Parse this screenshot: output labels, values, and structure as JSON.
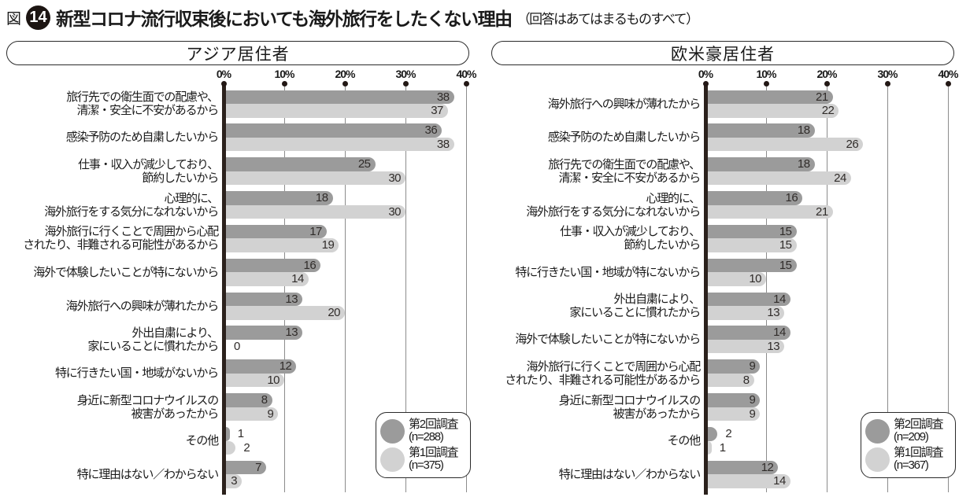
{
  "figure": {
    "prefix": "図",
    "number": "14",
    "title": "新型コロナ流行収束後においても海外旅行をしたくない理由",
    "note": "（回答はあてはまるものすべて）"
  },
  "colors": {
    "bar_dark": "#9b9b9b",
    "bar_light": "#d2d2d2",
    "axis": "#2b211c",
    "grid": "#8c8c8c"
  },
  "chart_data": [
    {
      "type": "bar",
      "orientation": "horizontal",
      "panel": "アジア居住者",
      "unit": "%",
      "xlim": [
        0,
        40
      ],
      "x_ticks": [
        0,
        10,
        20,
        30,
        40
      ],
      "x_tick_labels": [
        "0%",
        "10%",
        "20%",
        "30%",
        "40%"
      ],
      "grid": true,
      "legend_position": "bottom-right",
      "categories": [
        [
          "旅行先での衛生面での配慮や、",
          "清潔・安全に不安があるから"
        ],
        [
          "感染予防のため自粛したいから"
        ],
        [
          "仕事・収入が減少しており、",
          "節約したいから"
        ],
        [
          "心理的に、",
          "海外旅行をする気分になれないから"
        ],
        [
          "海外旅行に行くことで周囲から心配",
          "されたり、非難される可能性があるから"
        ],
        [
          "海外で体験したいことが特にないから"
        ],
        [
          "海外旅行への興味が薄れたから"
        ],
        [
          "外出自粛により、",
          "家にいることに慣れたから"
        ],
        [
          "特に行きたい国・地域がないから"
        ],
        [
          "身近に新型コロナウイルスの",
          "被害があったから"
        ],
        [
          "その他"
        ],
        [
          "特に理由はない／わからない"
        ]
      ],
      "series": [
        {
          "name": "第2回調査",
          "values": [
            38,
            36,
            25,
            18,
            17,
            16,
            13,
            13,
            12,
            8,
            1,
            7
          ]
        },
        {
          "name": "第1回調査",
          "values": [
            37,
            38,
            30,
            30,
            19,
            14,
            20,
            0,
            10,
            9,
            2,
            3
          ]
        }
      ],
      "legend": [
        {
          "label": "第2回調査",
          "n": "(n=288)"
        },
        {
          "label": "第1回調査",
          "n": "(n=375)"
        }
      ]
    },
    {
      "type": "bar",
      "orientation": "horizontal",
      "panel": "欧米豪居住者",
      "unit": "%",
      "xlim": [
        0,
        40
      ],
      "x_ticks": [
        0,
        10,
        20,
        30,
        40
      ],
      "x_tick_labels": [
        "0%",
        "10%",
        "20%",
        "30%",
        "40%"
      ],
      "grid": true,
      "legend_position": "bottom-right",
      "categories": [
        [
          "海外旅行への興味が薄れたから"
        ],
        [
          "感染予防のため自粛したいから"
        ],
        [
          "旅行先での衛生面での配慮や、",
          "清潔・安全に不安があるから"
        ],
        [
          "心理的に、",
          "海外旅行をする気分になれないから"
        ],
        [
          "仕事・収入が減少しており、",
          "節約したいから"
        ],
        [
          "特に行きたい国・地域が特にないから"
        ],
        [
          "外出自粛により、",
          "家にいることに慣れたから"
        ],
        [
          "海外で体験したいことが特にないから"
        ],
        [
          "海外旅行に行くことで周囲から心配",
          "されたり、非難される可能性があるから"
        ],
        [
          "身近に新型コロナウイルスの",
          "被害があったから"
        ],
        [
          "その他"
        ],
        [
          "特に理由はない／わからない"
        ]
      ],
      "series": [
        {
          "name": "第2回調査",
          "values": [
            21,
            18,
            18,
            16,
            15,
            15,
            14,
            14,
            9,
            9,
            2,
            12
          ]
        },
        {
          "name": "第1回調査",
          "values": [
            22,
            26,
            24,
            21,
            15,
            10,
            13,
            13,
            8,
            9,
            1,
            14
          ]
        }
      ],
      "legend": [
        {
          "label": "第2回調査",
          "n": "(n=209)"
        },
        {
          "label": "第1回調査",
          "n": "(n=367)"
        }
      ]
    }
  ]
}
